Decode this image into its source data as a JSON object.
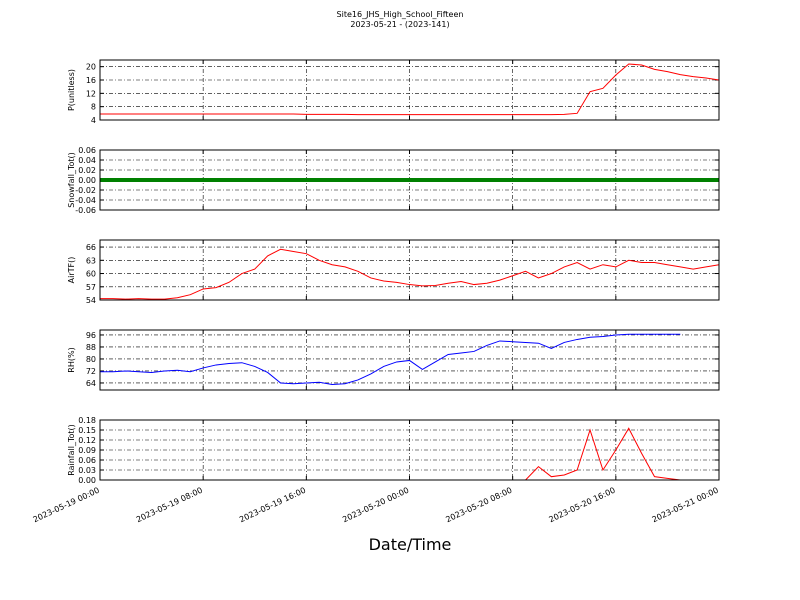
{
  "chart_data": [
    {
      "type": "line",
      "title": "Site16_JHS_High_School_Fifteen",
      "subtitle": "2023-05-21 - (2023-141)",
      "ylabel": "P(unitless)",
      "color": "#ff0000",
      "grid": true,
      "x": [
        "2023-05-19 00:00",
        "2023-05-19 01:00",
        "2023-05-19 02:00",
        "2023-05-19 03:00",
        "2023-05-19 04:00",
        "2023-05-19 05:00",
        "2023-05-19 06:00",
        "2023-05-19 07:00",
        "2023-05-19 08:00",
        "2023-05-19 09:00",
        "2023-05-19 10:00",
        "2023-05-19 11:00",
        "2023-05-19 12:00",
        "2023-05-19 13:00",
        "2023-05-19 14:00",
        "2023-05-19 15:00",
        "2023-05-19 16:00",
        "2023-05-19 17:00",
        "2023-05-19 18:00",
        "2023-05-19 19:00",
        "2023-05-19 20:00",
        "2023-05-19 21:00",
        "2023-05-19 22:00",
        "2023-05-19 23:00",
        "2023-05-20 00:00",
        "2023-05-20 01:00",
        "2023-05-20 02:00",
        "2023-05-20 03:00",
        "2023-05-20 04:00",
        "2023-05-20 05:00",
        "2023-05-20 06:00",
        "2023-05-20 07:00",
        "2023-05-20 08:00",
        "2023-05-20 09:00",
        "2023-05-20 10:00",
        "2023-05-20 11:00",
        "2023-05-20 12:00",
        "2023-05-20 13:00",
        "2023-05-20 14:00",
        "2023-05-20 15:00",
        "2023-05-20 16:00",
        "2023-05-20 17:00",
        "2023-05-20 18:00",
        "2023-05-20 19:00",
        "2023-05-20 20:00",
        "2023-05-20 21:00",
        "2023-05-20 22:00",
        "2023-05-20 23:00",
        "2023-05-21 00:00"
      ],
      "values": [
        5.8,
        5.8,
        5.8,
        5.8,
        5.8,
        5.8,
        5.8,
        5.8,
        5.8,
        5.8,
        5.8,
        5.8,
        5.8,
        5.8,
        5.8,
        5.8,
        5.7,
        5.7,
        5.7,
        5.7,
        5.6,
        5.6,
        5.6,
        5.6,
        5.6,
        5.6,
        5.6,
        5.6,
        5.6,
        5.6,
        5.6,
        5.6,
        5.6,
        5.6,
        5.6,
        5.6,
        5.7,
        6.0,
        12.5,
        13.5,
        17.5,
        20.8,
        20.5,
        19.2,
        18.5,
        17.6,
        17.0,
        16.6,
        16.0
      ],
      "xlim": [
        "2023-05-19 00:00",
        "2023-05-21 00:00"
      ],
      "xticks": [
        "2023-05-19 00:00",
        "2023-05-19 08:00",
        "2023-05-19 16:00",
        "2023-05-20 00:00",
        "2023-05-20 08:00",
        "2023-05-20 16:00",
        "2023-05-21 00:00"
      ],
      "ylim": [
        4,
        22
      ],
      "yticks": [
        4,
        8,
        12,
        16,
        20
      ]
    },
    {
      "type": "line",
      "ylabel": "Snowfall_Tot()",
      "color": "#008000",
      "grid": true,
      "x": [
        "2023-05-19 00:00",
        "2023-05-19 01:00",
        "2023-05-19 02:00",
        "2023-05-19 03:00",
        "2023-05-19 04:00",
        "2023-05-19 05:00",
        "2023-05-19 06:00",
        "2023-05-19 07:00",
        "2023-05-19 08:00",
        "2023-05-19 09:00",
        "2023-05-19 10:00",
        "2023-05-19 11:00",
        "2023-05-19 12:00",
        "2023-05-19 13:00",
        "2023-05-19 14:00",
        "2023-05-19 15:00",
        "2023-05-19 16:00",
        "2023-05-19 17:00",
        "2023-05-19 18:00",
        "2023-05-19 19:00",
        "2023-05-19 20:00",
        "2023-05-19 21:00",
        "2023-05-19 22:00",
        "2023-05-19 23:00",
        "2023-05-20 00:00",
        "2023-05-20 01:00",
        "2023-05-20 02:00",
        "2023-05-20 03:00",
        "2023-05-20 04:00",
        "2023-05-20 05:00",
        "2023-05-20 06:00",
        "2023-05-20 07:00",
        "2023-05-20 08:00",
        "2023-05-20 09:00",
        "2023-05-20 10:00",
        "2023-05-20 11:00",
        "2023-05-20 12:00",
        "2023-05-20 13:00",
        "2023-05-20 14:00",
        "2023-05-20 15:00",
        "2023-05-20 16:00",
        "2023-05-20 17:00",
        "2023-05-20 18:00",
        "2023-05-20 19:00",
        "2023-05-20 20:00",
        "2023-05-20 21:00",
        "2023-05-20 22:00",
        "2023-05-20 23:00",
        "2023-05-21 00:00"
      ],
      "values": [
        0,
        0,
        0,
        0,
        0,
        0,
        0,
        0,
        0,
        0,
        0,
        0,
        0,
        0,
        0,
        0,
        0,
        0,
        0,
        0,
        0,
        0,
        0,
        0,
        0,
        0,
        0,
        0,
        0,
        0,
        0,
        0,
        0,
        0,
        0,
        0,
        0,
        0,
        0,
        0,
        0,
        0,
        0,
        0,
        0,
        0,
        0,
        0,
        0
      ],
      "xlim": [
        "2023-05-19 00:00",
        "2023-05-21 00:00"
      ],
      "xticks": [
        "2023-05-19 00:00",
        "2023-05-19 08:00",
        "2023-05-19 16:00",
        "2023-05-20 00:00",
        "2023-05-20 08:00",
        "2023-05-20 16:00",
        "2023-05-21 00:00"
      ],
      "ylim": [
        -0.06,
        0.06
      ],
      "yticks": [
        -0.06,
        -0.04,
        -0.02,
        {
          "value": 0,
          "label": "0.00"
        },
        0.02,
        0.04,
        0.06
      ]
    },
    {
      "type": "line",
      "ylabel": "AirTF()",
      "color": "#ff0000",
      "grid": true,
      "x": [
        "2023-05-19 00:00",
        "2023-05-19 01:00",
        "2023-05-19 02:00",
        "2023-05-19 03:00",
        "2023-05-19 04:00",
        "2023-05-19 05:00",
        "2023-05-19 06:00",
        "2023-05-19 07:00",
        "2023-05-19 08:00",
        "2023-05-19 09:00",
        "2023-05-19 10:00",
        "2023-05-19 11:00",
        "2023-05-19 12:00",
        "2023-05-19 13:00",
        "2023-05-19 14:00",
        "2023-05-19 15:00",
        "2023-05-19 16:00",
        "2023-05-19 17:00",
        "2023-05-19 18:00",
        "2023-05-19 19:00",
        "2023-05-19 20:00",
        "2023-05-19 21:00",
        "2023-05-19 22:00",
        "2023-05-19 23:00",
        "2023-05-20 00:00",
        "2023-05-20 01:00",
        "2023-05-20 02:00",
        "2023-05-20 03:00",
        "2023-05-20 04:00",
        "2023-05-20 05:00",
        "2023-05-20 06:00",
        "2023-05-20 07:00",
        "2023-05-20 08:00",
        "2023-05-20 09:00",
        "2023-05-20 10:00",
        "2023-05-20 11:00",
        "2023-05-20 12:00",
        "2023-05-20 13:00",
        "2023-05-20 14:00",
        "2023-05-20 15:00",
        "2023-05-20 16:00",
        "2023-05-20 17:00",
        "2023-05-20 18:00",
        "2023-05-20 19:00",
        "2023-05-20 20:00",
        "2023-05-20 21:00",
        "2023-05-20 22:00",
        "2023-05-20 23:00",
        "2023-05-21 00:00"
      ],
      "values": [
        54.3,
        54.3,
        54.2,
        54.3,
        54.2,
        54.2,
        54.5,
        55.2,
        56.5,
        56.8,
        58,
        60,
        61,
        64,
        65.5,
        65,
        64.5,
        63,
        62,
        61.5,
        60.5,
        59,
        58.3,
        58,
        57.5,
        57.2,
        57.3,
        57.8,
        58.2,
        57.5,
        57.8,
        58.5,
        59.5,
        60.5,
        59,
        60,
        61.5,
        62.5,
        61,
        62,
        61.5,
        63,
        62.5,
        62.5,
        62,
        61.5,
        61,
        61.5,
        62
      ],
      "xlim": [
        "2023-05-19 00:00",
        "2023-05-21 00:00"
      ],
      "xticks": [
        "2023-05-19 00:00",
        "2023-05-19 08:00",
        "2023-05-19 16:00",
        "2023-05-20 00:00",
        "2023-05-20 08:00",
        "2023-05-20 16:00",
        "2023-05-21 00:00"
      ],
      "ylim": [
        54,
        67.6
      ],
      "yticks": [
        54,
        57,
        60,
        63,
        66
      ]
    },
    {
      "type": "line",
      "ylabel": "RH(%)",
      "color": "#0000ff",
      "grid": true,
      "x": [
        "2023-05-19 00:00",
        "2023-05-19 01:00",
        "2023-05-19 02:00",
        "2023-05-19 03:00",
        "2023-05-19 04:00",
        "2023-05-19 05:00",
        "2023-05-19 06:00",
        "2023-05-19 07:00",
        "2023-05-19 08:00",
        "2023-05-19 09:00",
        "2023-05-19 10:00",
        "2023-05-19 11:00",
        "2023-05-19 12:00",
        "2023-05-19 13:00",
        "2023-05-19 14:00",
        "2023-05-19 15:00",
        "2023-05-19 16:00",
        "2023-05-19 17:00",
        "2023-05-19 18:00",
        "2023-05-19 19:00",
        "2023-05-19 20:00",
        "2023-05-19 21:00",
        "2023-05-19 22:00",
        "2023-05-19 23:00",
        "2023-05-20 00:00",
        "2023-05-20 01:00",
        "2023-05-20 02:00",
        "2023-05-20 03:00",
        "2023-05-20 04:00",
        "2023-05-20 05:00",
        "2023-05-20 06:00",
        "2023-05-20 07:00",
        "2023-05-20 08:00",
        "2023-05-20 09:00",
        "2023-05-20 10:00",
        "2023-05-20 11:00",
        "2023-05-20 12:00",
        "2023-05-20 13:00",
        "2023-05-20 14:00",
        "2023-05-20 15:00",
        "2023-05-20 16:00",
        "2023-05-20 17:00",
        "2023-05-20 18:00",
        "2023-05-20 19:00",
        "2023-05-20 20:00",
        "2023-05-20 21:00",
        "2023-05-20 22:00",
        "2023-05-20 23:00",
        "2023-05-21 00:00"
      ],
      "values": [
        71.5,
        71.5,
        72,
        71.5,
        71,
        72,
        72.5,
        71.5,
        74,
        76,
        77,
        77.5,
        75,
        71,
        64,
        63.5,
        64,
        64.5,
        63,
        63.5,
        66,
        70,
        75,
        78,
        79,
        73,
        78,
        83,
        84,
        85,
        89,
        92,
        91.5,
        91,
        90.5,
        87,
        91,
        93,
        94.5,
        95,
        96,
        96.5,
        96.5,
        96.5,
        96.5,
        96.5,
        null,
        null,
        null
      ],
      "xlim": [
        "2023-05-19 00:00",
        "2023-05-21 00:00"
      ],
      "xticks": [
        "2023-05-19 00:00",
        "2023-05-19 08:00",
        "2023-05-19 16:00",
        "2023-05-20 00:00",
        "2023-05-20 08:00",
        "2023-05-20 16:00",
        "2023-05-21 00:00"
      ],
      "ylim": [
        59.3,
        99.3
      ],
      "yticks": [
        64,
        72,
        80,
        88,
        96
      ]
    },
    {
      "type": "line",
      "ylabel": "Rainfall_Tot()",
      "xlabel": "Date/Time",
      "color": "#ff0000",
      "grid": true,
      "x": [
        "2023-05-19 00:00",
        "2023-05-19 01:00",
        "2023-05-19 02:00",
        "2023-05-19 03:00",
        "2023-05-19 04:00",
        "2023-05-19 05:00",
        "2023-05-19 06:00",
        "2023-05-19 07:00",
        "2023-05-19 08:00",
        "2023-05-19 09:00",
        "2023-05-19 10:00",
        "2023-05-19 11:00",
        "2023-05-19 12:00",
        "2023-05-19 13:00",
        "2023-05-19 14:00",
        "2023-05-19 15:00",
        "2023-05-19 16:00",
        "2023-05-19 17:00",
        "2023-05-19 18:00",
        "2023-05-19 19:00",
        "2023-05-19 20:00",
        "2023-05-19 21:00",
        "2023-05-19 22:00",
        "2023-05-19 23:00",
        "2023-05-20 00:00",
        "2023-05-20 01:00",
        "2023-05-20 02:00",
        "2023-05-20 03:00",
        "2023-05-20 04:00",
        "2023-05-20 05:00",
        "2023-05-20 06:00",
        "2023-05-20 07:00",
        "2023-05-20 08:00",
        "2023-05-20 09:00",
        "2023-05-20 10:00",
        "2023-05-20 11:00",
        "2023-05-20 12:00",
        "2023-05-20 13:00",
        "2023-05-20 14:00",
        "2023-05-20 15:00",
        "2023-05-20 16:00",
        "2023-05-20 17:00",
        "2023-05-20 18:00",
        "2023-05-20 19:00",
        "2023-05-20 20:00",
        "2023-05-20 21:00",
        "2023-05-20 22:00",
        "2023-05-20 23:00",
        "2023-05-21 00:00"
      ],
      "values": [
        0,
        0,
        0,
        0,
        0,
        0,
        0,
        0,
        0,
        0,
        0,
        0,
        0,
        0,
        0,
        0,
        0,
        0,
        0,
        0,
        0,
        0,
        0,
        0,
        0,
        0,
        0,
        0,
        0,
        0,
        0,
        0,
        0,
        0,
        0.04,
        0.01,
        0.015,
        0.03,
        0.15,
        0.03,
        0.09,
        0.155,
        0.08,
        0.01,
        0.005,
        0,
        0,
        0,
        0
      ],
      "xlim": [
        "2023-05-19 00:00",
        "2023-05-21 00:00"
      ],
      "xticks": [
        "2023-05-19 00:00",
        "2023-05-19 08:00",
        "2023-05-19 16:00",
        "2023-05-20 00:00",
        "2023-05-20 08:00",
        "2023-05-20 16:00",
        "2023-05-21 00:00"
      ],
      "ylim": [
        0,
        0.18
      ],
      "yticks": [
        {
          "value": 0,
          "label": "0.00"
        },
        0.03,
        0.06,
        0.09,
        0.12,
        0.15,
        0.18
      ]
    }
  ]
}
